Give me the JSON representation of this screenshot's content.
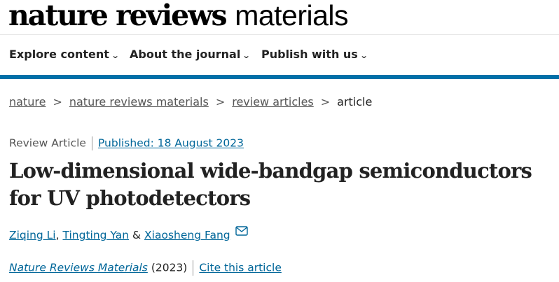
{
  "header": {
    "logo_bold": "nature reviews",
    "logo_light": "materials"
  },
  "nav": [
    {
      "label": "Explore content"
    },
    {
      "label": "About the journal"
    },
    {
      "label": "Publish with us"
    }
  ],
  "breadcrumb": [
    "nature",
    "nature reviews materials",
    "review articles",
    "article"
  ],
  "article": {
    "type": "Review Article",
    "published": "Published: 18 August 2023",
    "title": "Low-dimensional wide-bandgap semiconductors for UV photodetectors",
    "authors": [
      "Ziqing Li",
      "Tingting Yan",
      "Xiaosheng Fang"
    ],
    "author_sep1": ",",
    "author_sep2": "&",
    "journal": "Nature Reviews Materials",
    "year": "(2023)",
    "cite": "Cite this article"
  },
  "colors": {
    "accent": "#0070a8",
    "link": "#006699"
  }
}
